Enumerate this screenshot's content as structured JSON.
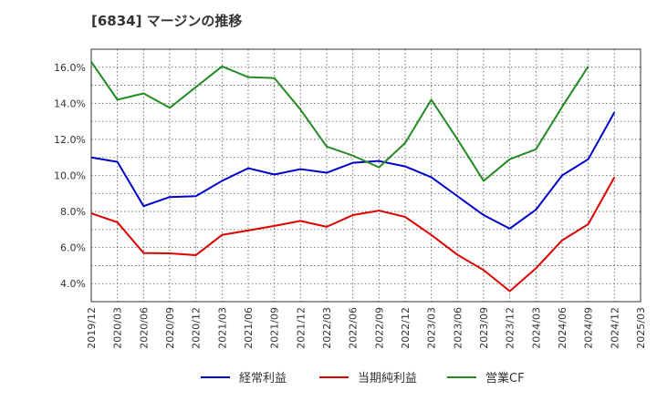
{
  "chart_data": {
    "type": "line",
    "title": "[6834]  マージンの推移",
    "x": [
      "2019/12",
      "2020/03",
      "2020/06",
      "2020/09",
      "2020/12",
      "2021/03",
      "2021/06",
      "2021/09",
      "2021/12",
      "2022/03",
      "2022/06",
      "2022/09",
      "2022/12",
      "2023/03",
      "2023/06",
      "2023/09",
      "2023/12",
      "2024/03",
      "2024/06",
      "2024/09",
      "2024/12",
      "2025/03"
    ],
    "series": [
      {
        "name": "経常利益",
        "color": "#0000cc",
        "values": [
          11.0,
          10.75,
          8.3,
          8.8,
          8.85,
          9.7,
          10.4,
          10.05,
          10.35,
          10.15,
          10.7,
          10.8,
          10.5,
          9.9,
          8.85,
          7.8,
          7.05,
          8.1,
          10.0,
          10.9,
          13.5,
          null
        ]
      },
      {
        "name": "当期純利益",
        "color": "#dd0000",
        "values": [
          7.9,
          7.4,
          5.7,
          5.68,
          5.58,
          6.7,
          6.95,
          7.2,
          7.48,
          7.15,
          7.8,
          8.05,
          7.7,
          6.7,
          5.6,
          4.75,
          3.58,
          4.85,
          6.4,
          7.3,
          9.9,
          null
        ]
      },
      {
        "name": "営業CF",
        "color": "#228b22",
        "values": [
          16.3,
          14.2,
          14.55,
          13.75,
          14.9,
          16.05,
          15.45,
          15.4,
          13.65,
          11.6,
          11.1,
          10.45,
          11.8,
          14.2,
          12.0,
          9.7,
          10.9,
          11.45,
          13.8,
          16.05,
          null,
          null
        ]
      }
    ],
    "yticks": [
      "4.0%",
      "6.0%",
      "8.0%",
      "10.0%",
      "12.0%",
      "14.0%",
      "16.0%"
    ],
    "ylim": [
      3.0,
      17.0
    ],
    "grid": true,
    "legend_position": "bottom"
  }
}
